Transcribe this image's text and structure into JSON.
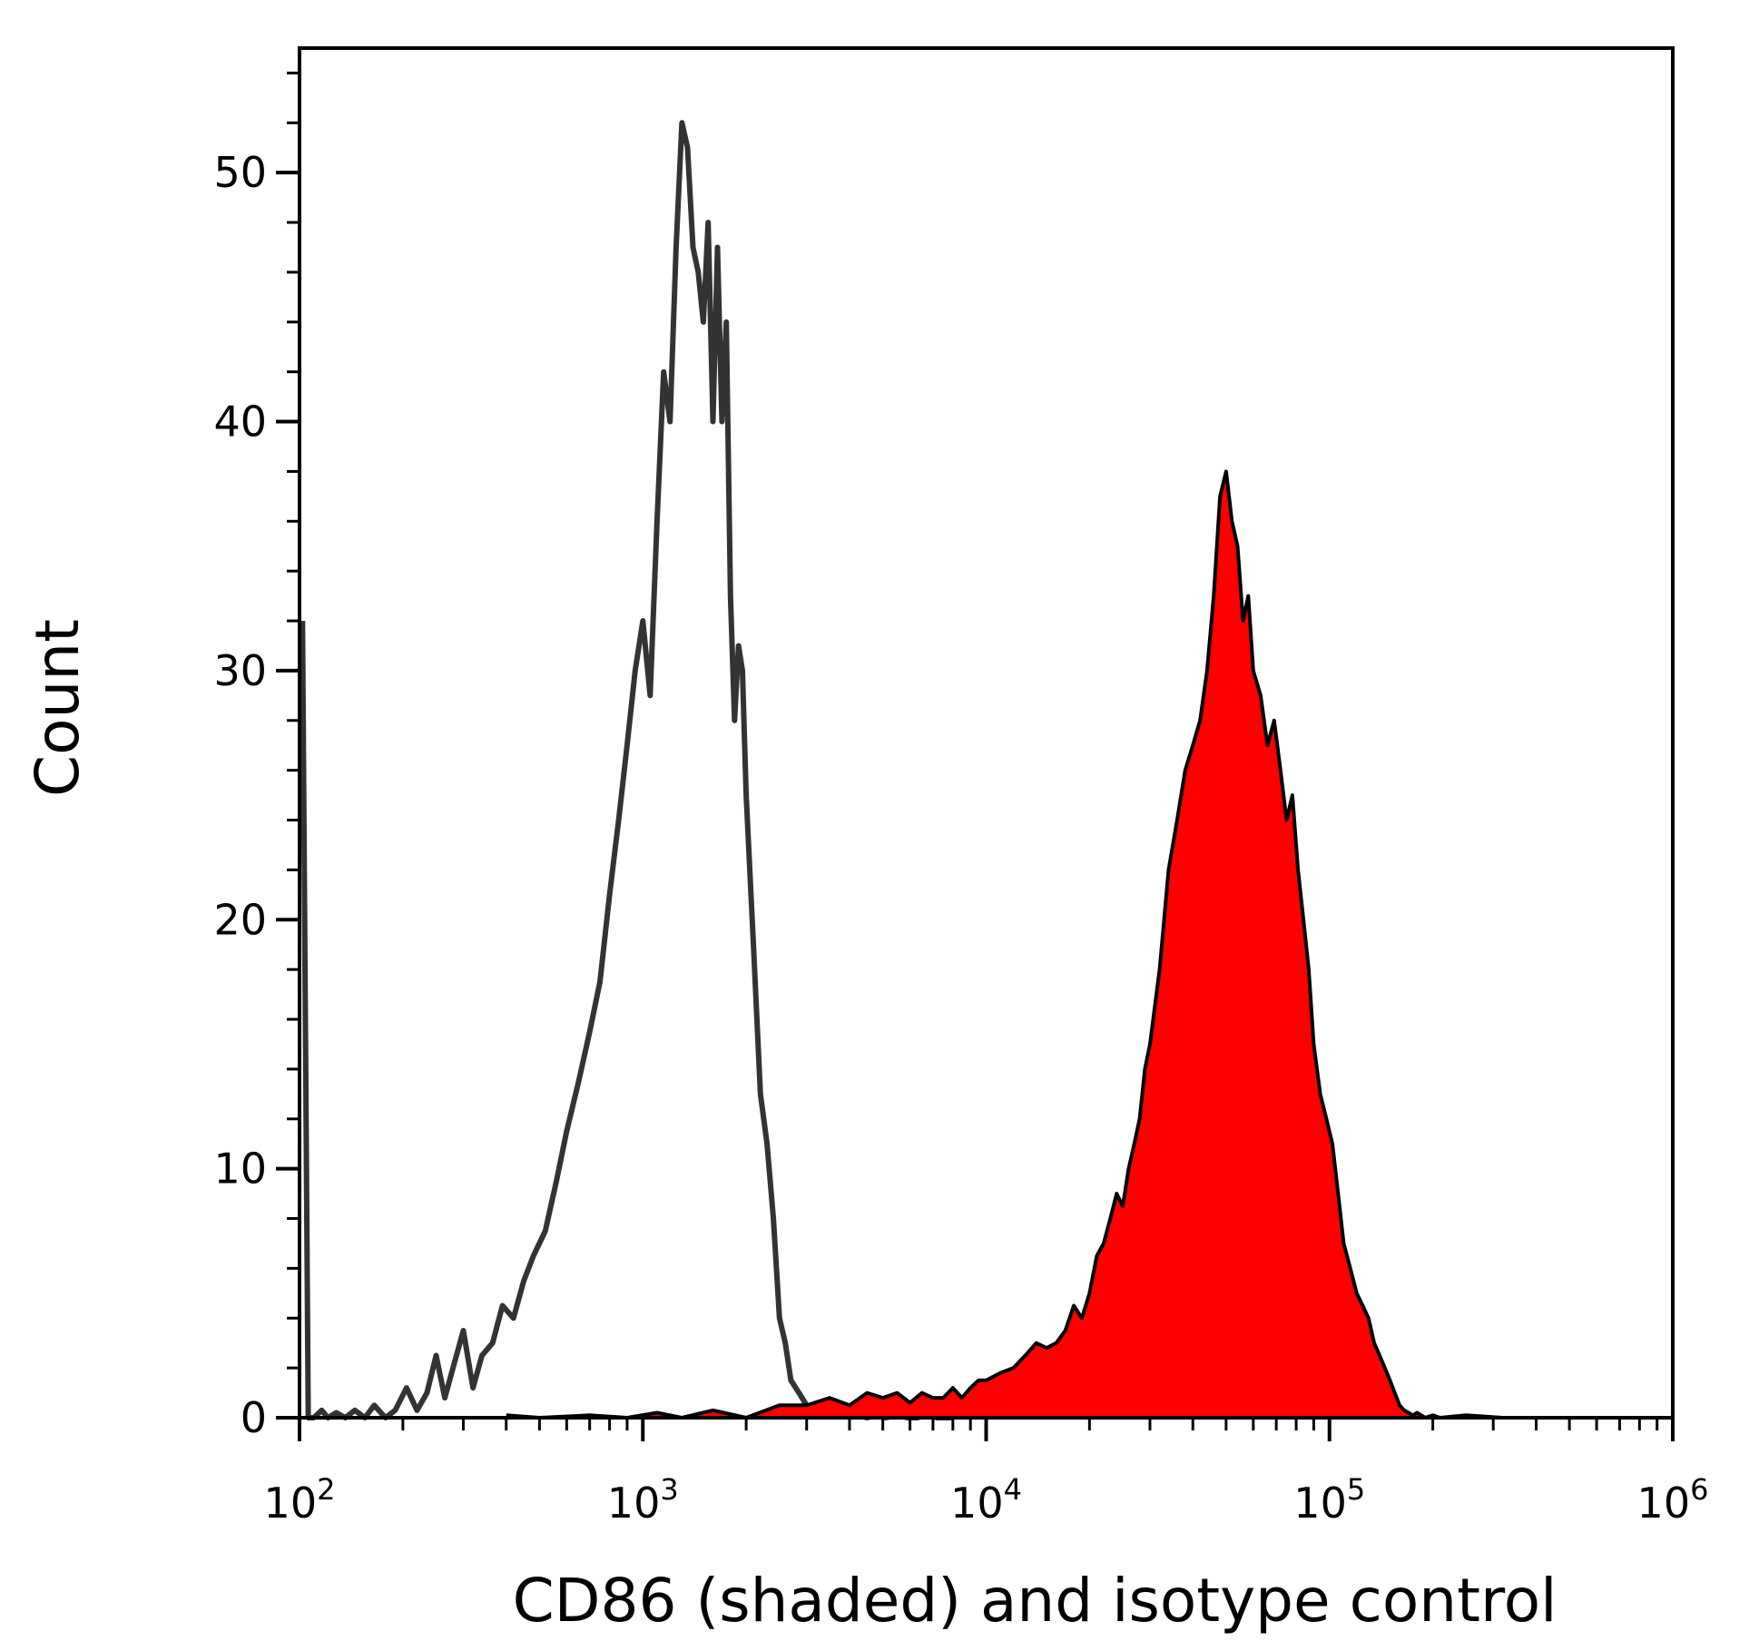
{
  "chart_data": {
    "type": "area",
    "title": "",
    "xlabel": "CD86 (shaded) and isotype control",
    "ylabel": "Count",
    "x_scale": "log",
    "xlim": [
      100,
      1000000
    ],
    "ylim": [
      0,
      55
    ],
    "x_ticks": [
      {
        "value": 100,
        "base": "10",
        "exp": "2"
      },
      {
        "value": 1000,
        "base": "10",
        "exp": "3"
      },
      {
        "value": 10000,
        "base": "10",
        "exp": "4"
      },
      {
        "value": 100000,
        "base": "10",
        "exp": "5"
      },
      {
        "value": 1000000,
        "base": "10",
        "exp": "6"
      }
    ],
    "y_ticks": [
      0,
      10,
      20,
      30,
      40,
      50
    ],
    "grid": false,
    "series": [
      {
        "style": "outline",
        "color": "#333333",
        "x": [
          102,
          106,
          110,
          116,
          121,
          128,
          136,
          145,
          155,
          165,
          178,
          190,
          205,
          220,
          235,
          250,
          265,
          280,
          300,
          320,
          340,
          365,
          390,
          420,
          450,
          480,
          520,
          560,
          600,
          650,
          700,
          750,
          800,
          850,
          900,
          950,
          1000,
          1050,
          1100,
          1150,
          1200,
          1250,
          1300,
          1350,
          1400,
          1450,
          1500,
          1550,
          1600,
          1650,
          1700,
          1750,
          1800,
          1850,
          1900,
          1950,
          2000,
          2100,
          2200,
          2300,
          2400,
          2500,
          2600,
          2700,
          2850,
          3000,
          3150,
          3300,
          3450,
          3600,
          3800,
          4000,
          4200,
          4500,
          4800,
          5100,
          5500,
          5900,
          6300,
          6800,
          7200,
          7600,
          8000
        ],
        "y": [
          32,
          0,
          0,
          0.3,
          0,
          0.2,
          0,
          0.3,
          0,
          0.5,
          0,
          0.3,
          1.2,
          0.3,
          1,
          2.5,
          0.8,
          2,
          3.5,
          1.2,
          2.5,
          3,
          4.5,
          4,
          5.5,
          6.5,
          7.5,
          9.5,
          11.5,
          13.5,
          15.5,
          17.5,
          21,
          24,
          27,
          30,
          32,
          29,
          36,
          42,
          40,
          47,
          52,
          51,
          47,
          46,
          44,
          48,
          40,
          47,
          40,
          44,
          33,
          28,
          31,
          30,
          25,
          19,
          13,
          11,
          8,
          4,
          3,
          1.5,
          1,
          0.5,
          0.3,
          0.5,
          0.2,
          0.2,
          0.3,
          0.2,
          0.1,
          0,
          0.1,
          0,
          0.1,
          0,
          0,
          0.1,
          0,
          0,
          0
        ]
      },
      {
        "style": "filled",
        "color": "#ff0000",
        "outline_color": "#000000",
        "x": [
          400,
          500,
          700,
          900,
          1100,
          1300,
          1600,
          2000,
          2500,
          3000,
          3500,
          4000,
          4500,
          5000,
          5500,
          6000,
          6500,
          7000,
          7500,
          8000,
          8500,
          9000,
          9500,
          10000,
          11000,
          12000,
          13000,
          14000,
          15000,
          16000,
          17000,
          18000,
          19000,
          20000,
          21000,
          22000,
          23000,
          24000,
          25000,
          26000,
          27000,
          28000,
          29000,
          30000,
          32000,
          34000,
          36000,
          38000,
          40000,
          42000,
          44000,
          46000,
          48000,
          50000,
          52000,
          54000,
          56000,
          58000,
          60000,
          63000,
          66000,
          69000,
          72000,
          75000,
          78000,
          81000,
          84000,
          87000,
          90000,
          94000,
          98000,
          102000,
          106000,
          110000,
          115000,
          120000,
          125000,
          130000,
          135000,
          140000,
          145000,
          150000,
          155000,
          160000,
          165000,
          170000,
          175000,
          180000,
          190000,
          200000,
          210000,
          250000,
          320000
        ],
        "y": [
          0.1,
          0,
          0.1,
          0,
          0.2,
          0,
          0.3,
          0,
          0.5,
          0.5,
          0.8,
          0.5,
          1,
          0.8,
          1,
          0.6,
          1,
          0.8,
          0.8,
          1.2,
          0.8,
          1.2,
          1.5,
          1.5,
          1.8,
          2,
          2.5,
          3,
          2.8,
          3,
          3.5,
          4.5,
          4,
          5,
          6.5,
          7,
          8,
          9,
          8.5,
          10,
          11,
          12,
          14,
          15,
          18,
          22,
          24,
          26,
          27,
          28,
          30,
          33,
          37,
          38,
          36,
          35,
          32,
          33,
          30,
          29,
          27,
          28,
          26,
          24,
          25,
          22,
          20,
          18,
          15,
          13,
          12,
          11,
          9,
          7,
          6,
          5,
          4.5,
          4,
          3,
          2.5,
          2,
          1.5,
          1,
          0.5,
          0.3,
          0.2,
          0.1,
          0.2,
          0,
          0.1,
          0,
          0.1,
          0
        ]
      }
    ]
  }
}
